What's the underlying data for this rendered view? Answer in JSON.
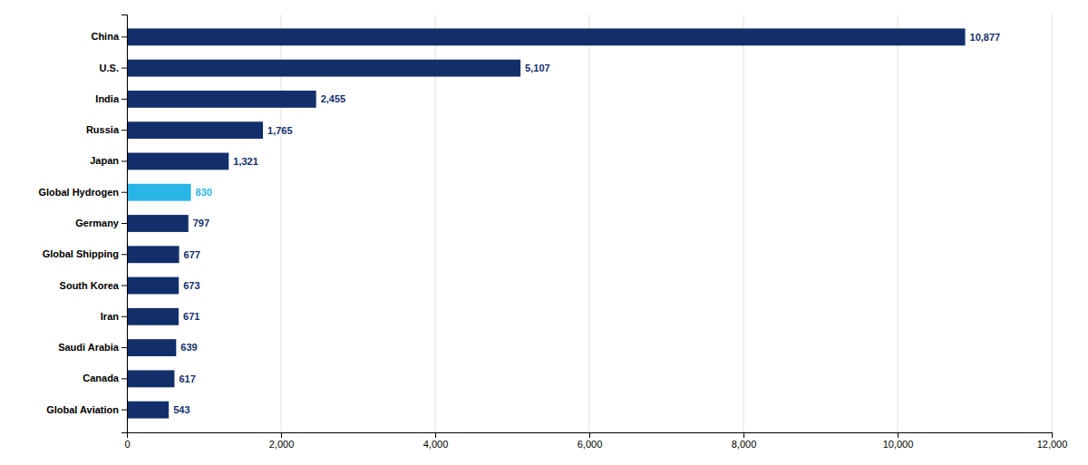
{
  "chart_data": {
    "type": "bar",
    "orientation": "horizontal",
    "categories": [
      "Global Aviation",
      "Canada",
      "Saudi Arabia",
      "Iran",
      "South Korea",
      "Global Shipping",
      "Germany",
      "Global Hydrogen",
      "Japan",
      "Russia",
      "India",
      "U.S.",
      "China"
    ],
    "values": [
      543,
      617,
      639,
      671,
      673,
      677,
      797,
      830,
      1321,
      1765,
      2455,
      5107,
      10877
    ],
    "value_labels": [
      "543",
      "617",
      "639",
      "671",
      "673",
      "677",
      "797",
      "830",
      "1,321",
      "1,765",
      "2,455",
      "5,107",
      "10,877"
    ],
    "colors": [
      "#132f6b",
      "#132f6b",
      "#132f6b",
      "#132f6b",
      "#132f6b",
      "#132f6b",
      "#132f6b",
      "#29b5e8",
      "#132f6b",
      "#132f6b",
      "#132f6b",
      "#132f6b",
      "#132f6b"
    ],
    "data_labels": true,
    "xlim": [
      0,
      12000
    ],
    "xticks": [
      0,
      {
        "value": 2000,
        "label": "2,000"
      },
      {
        "value": 4000,
        "label": "4,000"
      },
      {
        "value": 6000,
        "label": "6,000"
      },
      {
        "value": 8000,
        "label": "8,000"
      },
      {
        "value": 10000,
        "label": "10,000"
      },
      {
        "value": 12000,
        "label": "12,000"
      }
    ],
    "grid": true
  }
}
